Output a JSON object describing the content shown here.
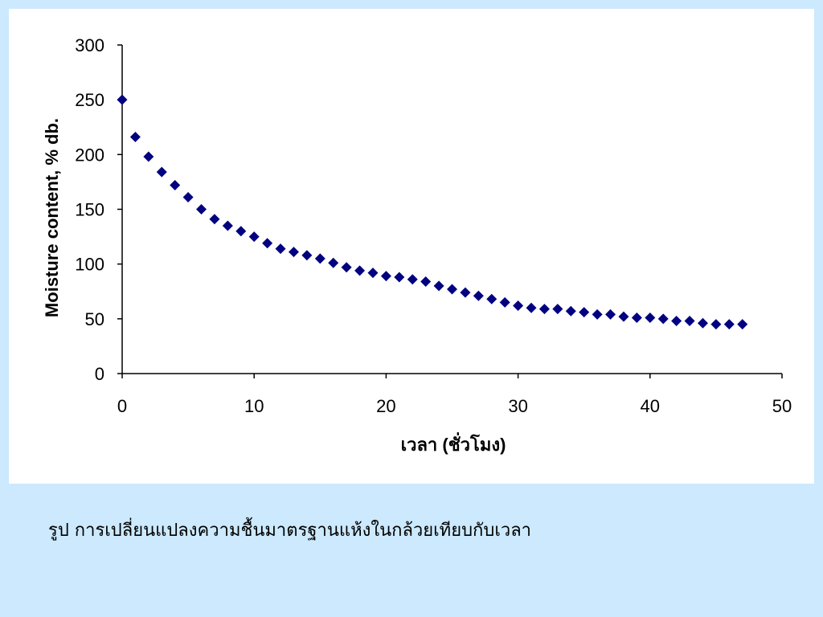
{
  "chart_data": {
    "type": "scatter",
    "xlabel": "เวลา (ชั่วโมง)",
    "ylabel": "Moisture content, % db.",
    "xlim": [
      0,
      50
    ],
    "ylim": [
      0,
      300
    ],
    "xticks": [
      0,
      10,
      20,
      30,
      40,
      50
    ],
    "yticks": [
      0,
      50,
      100,
      150,
      200,
      250,
      300
    ],
    "grid": false,
    "marker_color": "#000080",
    "marker_shape": "diamond",
    "series": [
      {
        "x": [
          0,
          1,
          2,
          3,
          4,
          5,
          6,
          7,
          8,
          9,
          10,
          11,
          12,
          13,
          14,
          15,
          16,
          17,
          18,
          19,
          20,
          21,
          22,
          23,
          24,
          25,
          26,
          27,
          28,
          29,
          30,
          31,
          32,
          33,
          34,
          35,
          36,
          37,
          38,
          39,
          40,
          41,
          42,
          43,
          44,
          45,
          46,
          47
        ],
        "y": [
          250,
          216,
          198,
          184,
          172,
          161,
          150,
          141,
          135,
          130,
          125,
          119,
          114,
          111,
          108,
          105,
          101,
          97,
          94,
          92,
          89,
          88,
          86,
          84,
          80,
          77,
          74,
          71,
          68,
          65,
          62,
          60,
          59,
          59,
          57,
          56,
          54,
          54,
          52,
          51,
          51,
          50,
          48,
          48,
          46,
          45,
          45,
          45
        ]
      }
    ]
  },
  "caption": "รูป การเปลี่ยนแปลงความชื้นมาตรฐานแห้งในกล้วยเทียบกับเวลา"
}
